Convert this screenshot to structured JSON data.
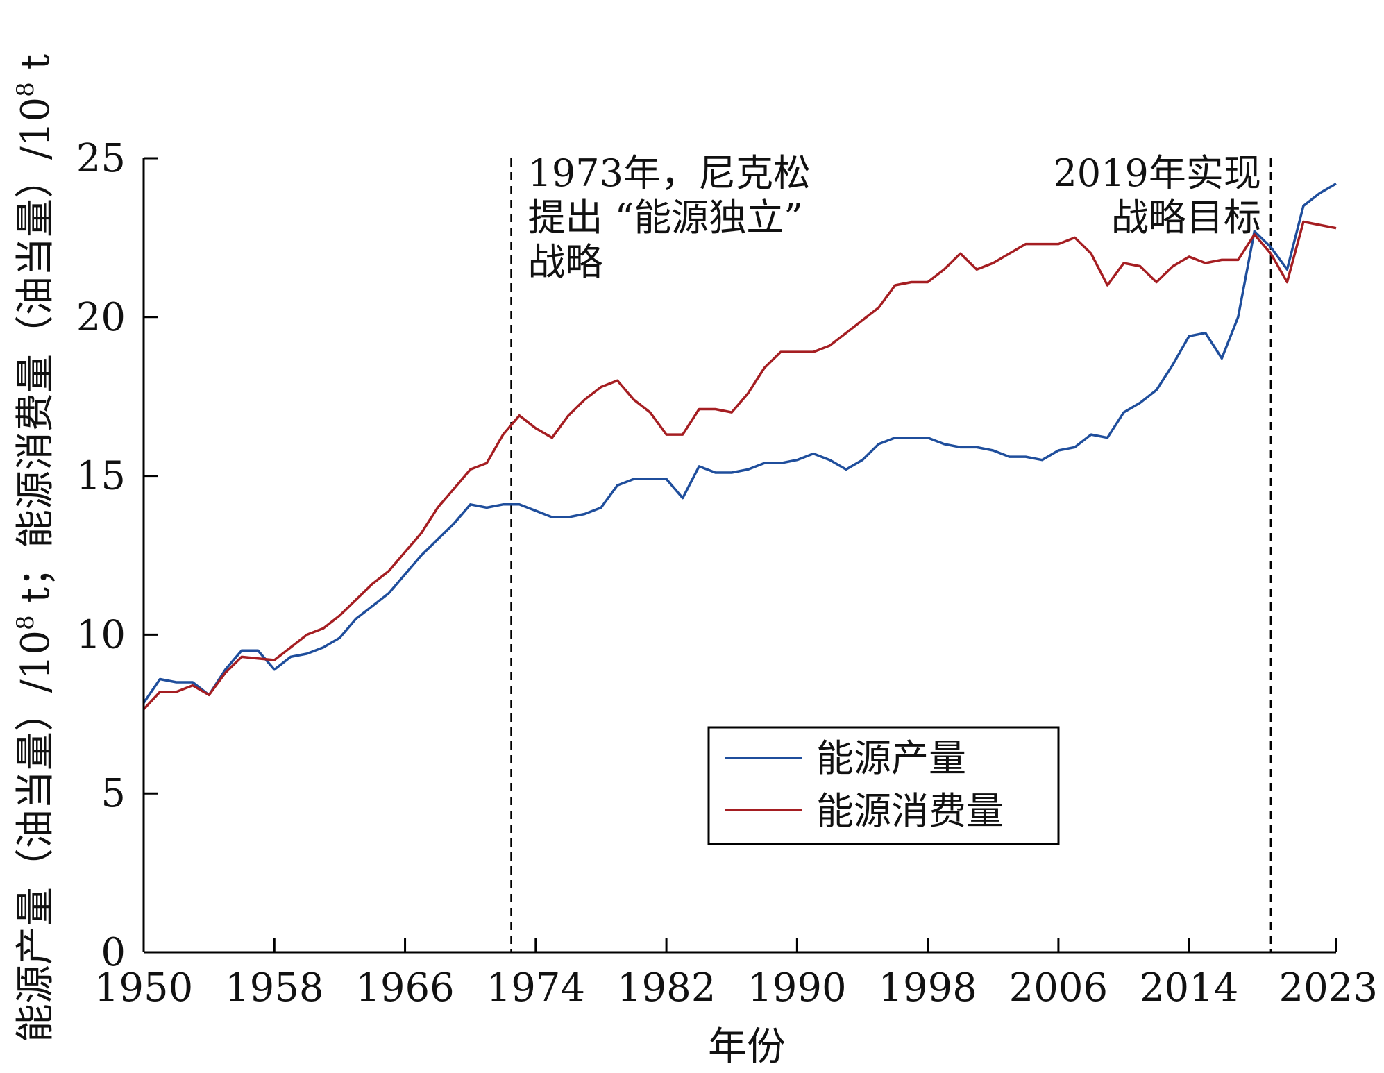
{
  "chart_data": {
    "type": "line",
    "xlabel": "年份",
    "ylabel": "能源产量（油当量）/10⁸ t；能源消费量（油当量）/10⁸ t",
    "ylabel_parts": [
      "能源产量（油当量）/10",
      "8",
      " t；能源消费量（油当量）/10",
      "8",
      " t"
    ],
    "xlim": [
      1950,
      2023
    ],
    "ylim": [
      0,
      25
    ],
    "xticks": [
      1950,
      1958,
      1966,
      1974,
      1982,
      1990,
      1998,
      2006,
      2014,
      2023
    ],
    "yticks": [
      0,
      5,
      10,
      15,
      20,
      25
    ],
    "grid": false,
    "legend_position": "bottom-center",
    "series": [
      {
        "name": "能源产量",
        "color": "#1f4e9c",
        "x": [
          1950,
          1951,
          1952,
          1953,
          1954,
          1955,
          1956,
          1957,
          1958,
          1959,
          1960,
          1961,
          1962,
          1963,
          1964,
          1965,
          1966,
          1967,
          1968,
          1969,
          1970,
          1971,
          1972,
          1973,
          1974,
          1975,
          1976,
          1977,
          1978,
          1979,
          1980,
          1981,
          1982,
          1983,
          1984,
          1985,
          1986,
          1987,
          1988,
          1989,
          1990,
          1991,
          1992,
          1993,
          1994,
          1995,
          1996,
          1997,
          1998,
          1999,
          2000,
          2001,
          2002,
          2003,
          2004,
          2005,
          2006,
          2007,
          2008,
          2009,
          2010,
          2011,
          2012,
          2013,
          2014,
          2015,
          2016,
          2017,
          2018,
          2019,
          2020,
          2021,
          2022,
          2023
        ],
        "values": [
          7.85,
          8.6,
          8.5,
          8.5,
          8.1,
          8.9,
          9.5,
          9.5,
          8.9,
          9.3,
          9.4,
          9.6,
          9.9,
          10.5,
          10.9,
          11.3,
          11.9,
          12.5,
          13.0,
          13.5,
          14.1,
          14.0,
          14.1,
          14.1,
          13.9,
          13.7,
          13.7,
          13.8,
          14.0,
          14.7,
          14.9,
          14.9,
          14.9,
          14.3,
          15.3,
          15.1,
          15.1,
          15.2,
          15.4,
          15.4,
          15.5,
          15.7,
          15.5,
          15.2,
          15.5,
          16.0,
          16.2,
          16.2,
          16.2,
          16.0,
          15.9,
          15.9,
          15.8,
          15.6,
          15.6,
          15.5,
          15.8,
          15.9,
          16.3,
          16.2,
          17.0,
          17.3,
          17.7,
          18.5,
          19.4,
          19.5,
          18.7,
          20.0,
          22.7,
          22.2,
          21.5,
          23.5,
          23.9,
          24.2
        ]
      },
      {
        "name": "能源消费量",
        "color": "#a51e22",
        "x": [
          1950,
          1951,
          1952,
          1953,
          1954,
          1955,
          1956,
          1957,
          1958,
          1959,
          1960,
          1961,
          1962,
          1963,
          1964,
          1965,
          1966,
          1967,
          1968,
          1969,
          1970,
          1971,
          1972,
          1973,
          1974,
          1975,
          1976,
          1977,
          1978,
          1979,
          1980,
          1981,
          1982,
          1983,
          1984,
          1985,
          1986,
          1987,
          1988,
          1989,
          1990,
          1991,
          1992,
          1993,
          1994,
          1995,
          1996,
          1997,
          1998,
          1999,
          2000,
          2001,
          2002,
          2003,
          2004,
          2005,
          2006,
          2007,
          2008,
          2009,
          2010,
          2011,
          2012,
          2013,
          2014,
          2015,
          2016,
          2017,
          2018,
          2019,
          2020,
          2021,
          2022,
          2023
        ],
        "values": [
          7.65,
          8.2,
          8.2,
          8.4,
          8.1,
          8.8,
          9.3,
          9.25,
          9.2,
          9.6,
          10.0,
          10.2,
          10.6,
          11.1,
          11.6,
          12.0,
          12.6,
          13.2,
          14.0,
          14.6,
          15.2,
          15.4,
          16.3,
          16.9,
          16.5,
          16.2,
          16.9,
          17.4,
          17.8,
          18.0,
          17.4,
          17.0,
          16.3,
          16.3,
          17.1,
          17.1,
          17.0,
          17.6,
          18.4,
          18.9,
          18.9,
          18.9,
          19.1,
          19.5,
          19.9,
          20.3,
          21.0,
          21.1,
          21.1,
          21.5,
          22.0,
          21.5,
          21.7,
          22.0,
          22.3,
          22.3,
          22.3,
          22.5,
          22.0,
          21.0,
          21.7,
          21.6,
          21.1,
          21.6,
          21.9,
          21.7,
          21.8,
          21.8,
          22.6,
          22.0,
          21.1,
          23.0,
          22.9,
          22.8
        ]
      }
    ],
    "annotations": [
      {
        "x": 1972.5,
        "side": "right",
        "lines": [
          "1973年，尼克松",
          "提出 “能源独立”",
          "战略"
        ]
      },
      {
        "x": 2019,
        "side": "left",
        "lines": [
          "2019年实现",
          "战略目标"
        ]
      }
    ]
  }
}
